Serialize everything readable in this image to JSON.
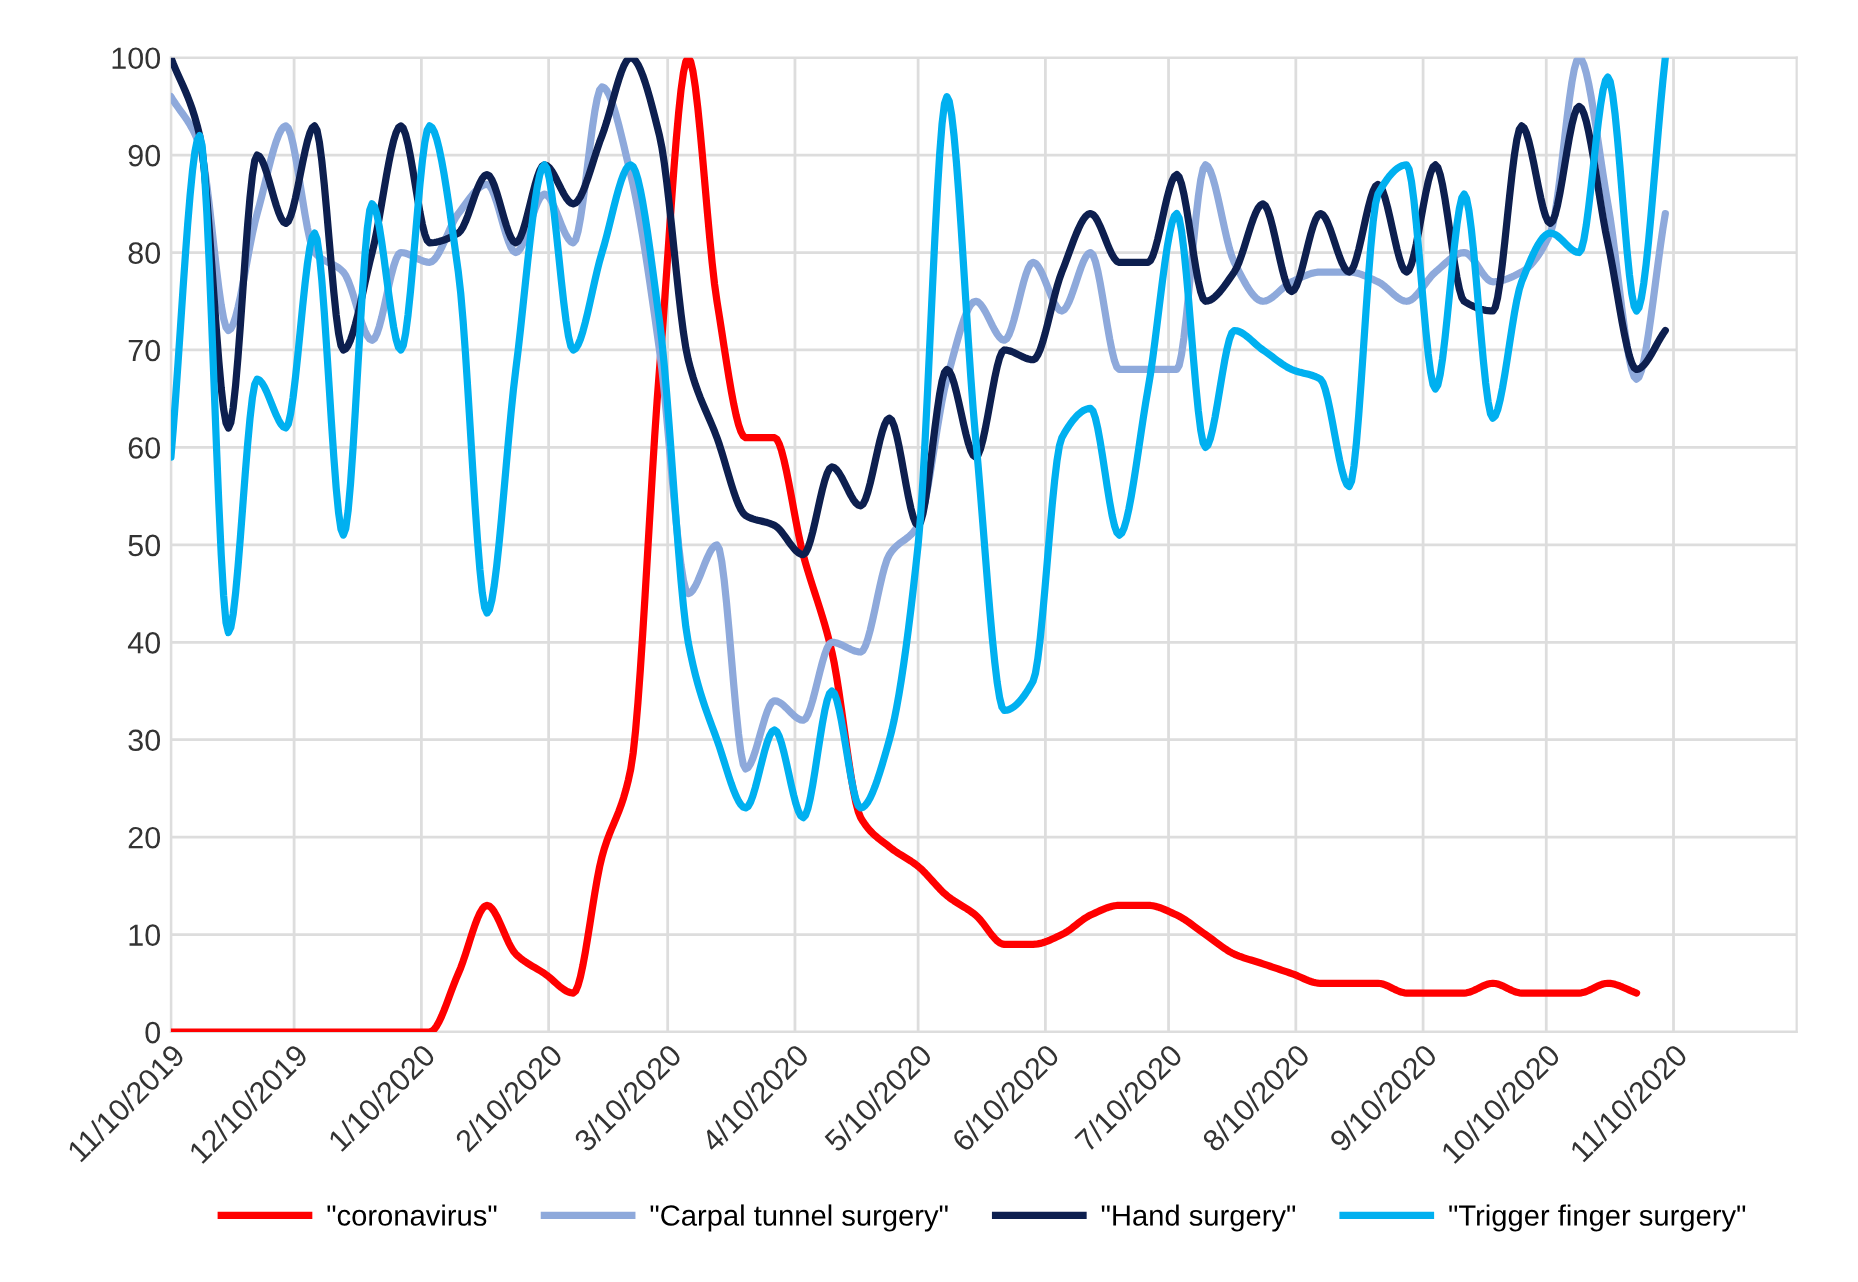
{
  "chart_data": {
    "type": "line",
    "x": [
      "2019-11-10",
      "2019-11-17",
      "2019-11-24",
      "2019-12-01",
      "2019-12-08",
      "2019-12-15",
      "2019-12-22",
      "2019-12-29",
      "2020-01-05",
      "2020-01-12",
      "2020-01-19",
      "2020-01-26",
      "2020-02-02",
      "2020-02-09",
      "2020-02-16",
      "2020-02-23",
      "2020-03-01",
      "2020-03-08",
      "2020-03-15",
      "2020-03-22",
      "2020-03-29",
      "2020-04-05",
      "2020-04-12",
      "2020-04-19",
      "2020-04-26",
      "2020-05-03",
      "2020-05-10",
      "2020-05-17",
      "2020-05-24",
      "2020-05-31",
      "2020-06-07",
      "2020-06-14",
      "2020-06-21",
      "2020-06-28",
      "2020-07-05",
      "2020-07-12",
      "2020-07-19",
      "2020-07-26",
      "2020-08-02",
      "2020-08-09",
      "2020-08-16",
      "2020-08-23",
      "2020-08-30",
      "2020-09-06",
      "2020-09-13",
      "2020-09-20",
      "2020-09-27",
      "2020-10-04",
      "2020-10-11",
      "2020-10-18",
      "2020-10-25",
      "2020-11-01",
      "2020-11-08"
    ],
    "series": [
      {
        "name": "\"coronavirus\"",
        "color": "#ff0000",
        "values": [
          0,
          0,
          0,
          0,
          0,
          0,
          0,
          0,
          0,
          0,
          6,
          13,
          8,
          6,
          4,
          18,
          27,
          68,
          100,
          75,
          61,
          61,
          49,
          39,
          22,
          19,
          17,
          14,
          12,
          9,
          9,
          10,
          12,
          13,
          13,
          12,
          10,
          8,
          7,
          6,
          5,
          5,
          5,
          4,
          4,
          4,
          5,
          4,
          4,
          4,
          5,
          4,
          null
        ]
      },
      {
        "name": "\"Carpal tunnel surgery\"",
        "color": "#8ea9db",
        "values": [
          96,
          91,
          72,
          84,
          93,
          80,
          78,
          71,
          80,
          79,
          84,
          87,
          80,
          86,
          81,
          97,
          88,
          70,
          45,
          50,
          27,
          34,
          32,
          40,
          39,
          49,
          52,
          67,
          75,
          71,
          79,
          74,
          80,
          68,
          68,
          68,
          89,
          79,
          75,
          77,
          78,
          78,
          77,
          75,
          78,
          80,
          77,
          78,
          82,
          100,
          85,
          67,
          84
        ]
      },
      {
        "name": "\"Hand surgery\"",
        "color": "#0d1f4f",
        "values": [
          100,
          92,
          62,
          90,
          83,
          93,
          70,
          80,
          93,
          81,
          82,
          88,
          81,
          89,
          85,
          92,
          100,
          92,
          69,
          61,
          53,
          52,
          49,
          58,
          54,
          63,
          52,
          68,
          59,
          70,
          69,
          78,
          84,
          79,
          79,
          88,
          75,
          78,
          85,
          76,
          84,
          78,
          87,
          78,
          89,
          75,
          74,
          93,
          83,
          95,
          81,
          68,
          72
        ]
      },
      {
        "name": "\"Trigger finger surgery\"",
        "color": "#00b0f0",
        "values": [
          59,
          92,
          41,
          67,
          62,
          82,
          51,
          85,
          70,
          93,
          78,
          43,
          68,
          89,
          70,
          80,
          89,
          73,
          40,
          30,
          23,
          31,
          22,
          35,
          23,
          30,
          50,
          96,
          61,
          33,
          36,
          61,
          64,
          51,
          66,
          84,
          60,
          72,
          70,
          68,
          67,
          56,
          86,
          89,
          66,
          86,
          63,
          77,
          82,
          80,
          98,
          74,
          100
        ]
      }
    ],
    "xlim": [
      "2019-11-10",
      "2020-12-10"
    ],
    "xticks": [
      {
        "value": "2019-11-10",
        "label": "11/10/2019"
      },
      {
        "value": "2019-12-10",
        "label": "12/10/2019"
      },
      {
        "value": "2020-01-10",
        "label": "1/10/2020"
      },
      {
        "value": "2020-02-10",
        "label": "2/10/2020"
      },
      {
        "value": "2020-03-10",
        "label": "3/10/2020"
      },
      {
        "value": "2020-04-10",
        "label": "4/10/2020"
      },
      {
        "value": "2020-05-10",
        "label": "5/10/2020"
      },
      {
        "value": "2020-06-10",
        "label": "6/10/2020"
      },
      {
        "value": "2020-07-10",
        "label": "7/10/2020"
      },
      {
        "value": "2020-08-10",
        "label": "8/10/2020"
      },
      {
        "value": "2020-09-10",
        "label": "9/10/2020"
      },
      {
        "value": "2020-10-10",
        "label": "10/10/2020"
      },
      {
        "value": "2020-11-10",
        "label": "11/10/2020"
      }
    ],
    "ylim": [
      0,
      100
    ],
    "yticks": [
      0,
      10,
      20,
      30,
      40,
      50,
      60,
      70,
      80,
      90,
      100
    ],
    "grid": true,
    "legend": "bottom",
    "marker": "none",
    "line_style": "solid"
  }
}
